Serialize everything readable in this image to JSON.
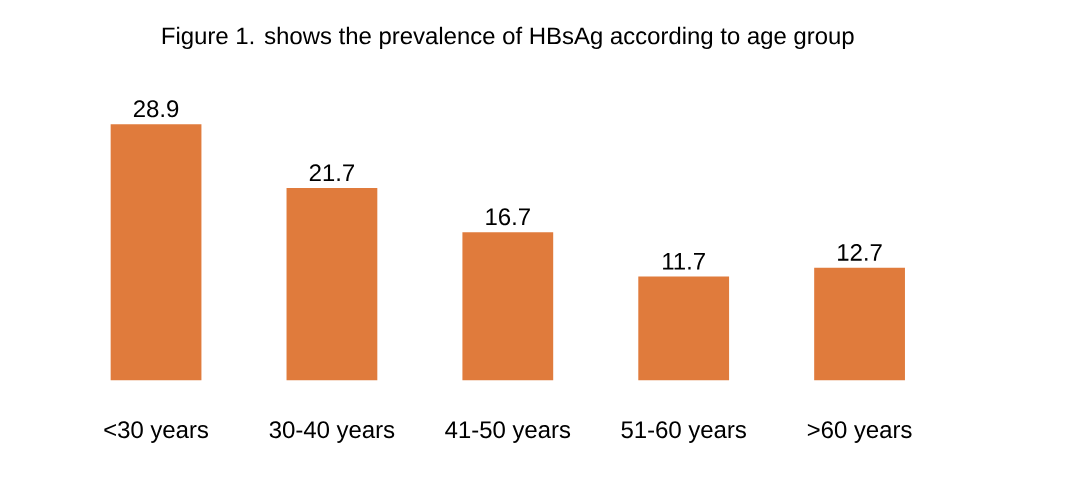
{
  "chart_data": {
    "type": "bar",
    "title": "Figure 1. shows the prevalence of HBsAg according to age group",
    "categories": [
      "<30 years",
      "30-40 years",
      "41-50 years",
      "51-60 years",
      ">60 years"
    ],
    "values": [
      28.9,
      21.7,
      16.7,
      11.7,
      12.7
    ],
    "color": "#e07b3c",
    "data_labels": true
  }
}
